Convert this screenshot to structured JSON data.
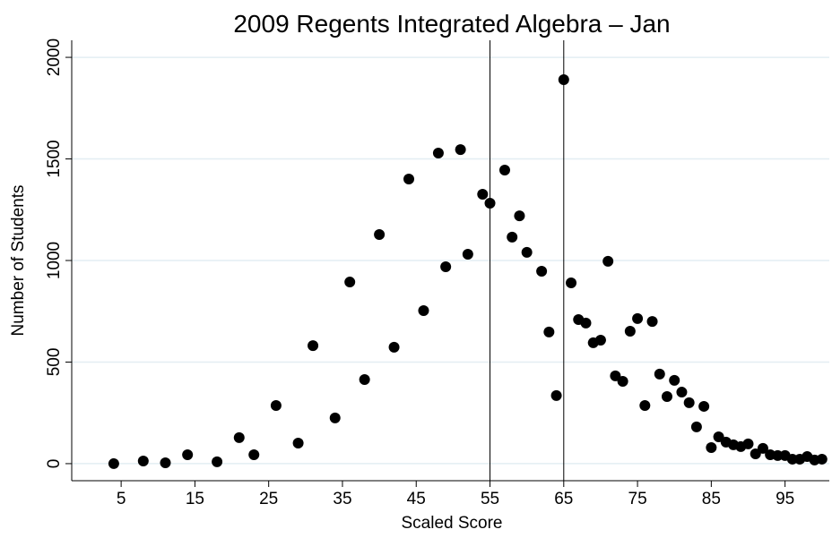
{
  "chart_data": {
    "type": "scatter",
    "title": "2009 Regents Integrated Algebra – Jan",
    "x_label": "Scaled Score",
    "y_label": "Number of Students",
    "x": [
      4,
      8,
      11,
      14,
      18,
      21,
      23,
      26,
      29,
      31,
      34,
      36,
      38,
      40,
      42,
      44,
      46,
      48,
      49,
      51,
      52,
      54,
      55,
      57,
      58,
      59,
      60,
      62,
      63,
      64,
      65,
      66,
      67,
      68,
      69,
      70,
      71,
      72,
      73,
      74,
      75,
      76,
      77,
      78,
      79,
      80,
      81,
      82,
      83,
      84,
      85,
      86,
      87,
      88,
      89,
      90,
      91,
      92,
      93,
      94,
      95,
      96,
      97,
      98,
      99,
      100
    ],
    "values": [
      0,
      13,
      4,
      44,
      9,
      128,
      44,
      286,
      101,
      581,
      225,
      894,
      414,
      1128,
      573,
      1401,
      753,
      1529,
      969,
      1546,
      1031,
      1326,
      1282,
      1445,
      1115,
      1220,
      1040,
      947,
      648,
      335,
      1890,
      890,
      709,
      692,
      595,
      608,
      996,
      432,
      405,
      652,
      714,
      286,
      700,
      441,
      330,
      410,
      352,
      300,
      181,
      282,
      79,
      132,
      106,
      93,
      84,
      97,
      48,
      75,
      44,
      40,
      40,
      22,
      22,
      35,
      18,
      22
    ],
    "color": "#000000",
    "xlim": [
      -1.7,
      101
    ],
    "ylim": [
      -84,
      2084
    ],
    "xticks": [
      5,
      15,
      25,
      35,
      45,
      55,
      65,
      75,
      85,
      95
    ],
    "yticks": [
      0,
      500,
      1000,
      1500,
      2000
    ],
    "xlines": [
      55,
      65
    ],
    "grid": true
  }
}
